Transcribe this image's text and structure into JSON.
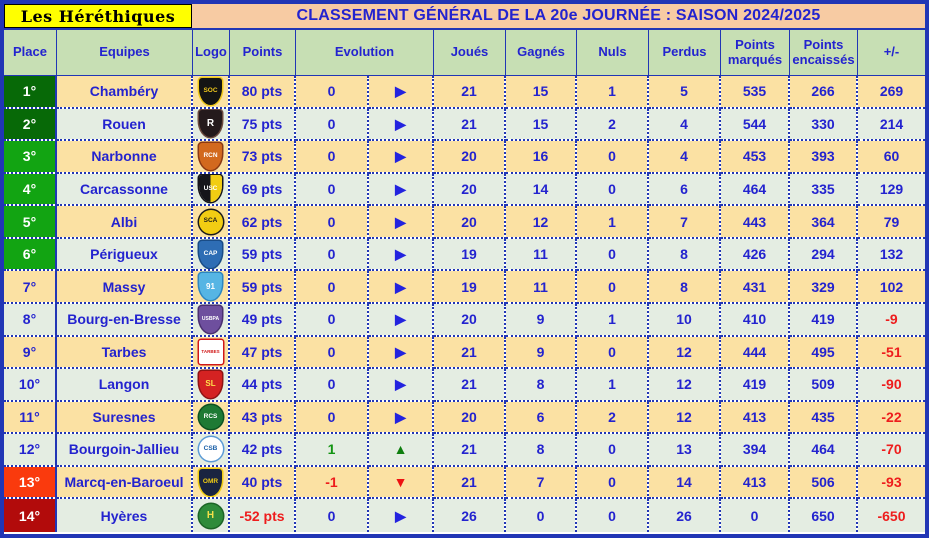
{
  "club_title": "Les Héréthiques",
  "page_title": "CLASSEMENT GÉNÉRAL DE LA 20e JOURNÉE : SAISON 2024/2025",
  "columns": [
    "Place",
    "Equipes",
    "Logo",
    "Points",
    "Evolution",
    "Joués",
    "Gagnés",
    "Nuls",
    "Perdus",
    "Points marqués",
    "Points encaissés",
    "+/-"
  ],
  "colors": {
    "frame_border": "#2136B5",
    "title_bg": "#F7CBA3",
    "title_text": "#2323CF",
    "club_bg": "#FFFF00",
    "club_text": "#000000",
    "header_bg": "#C7DFB4",
    "header_text": "#2323CF",
    "row_odd_bg": "#FBE1A3",
    "row_even_bg": "#E4EDE2",
    "cell_text": "#2323CF",
    "negative_text": "#EE1C1C",
    "positive_evo_text": "#129412",
    "place_dark_green": "#076907",
    "place_green": "#12A412",
    "place_orange": "#FA3A0D",
    "place_dark_red": "#B20B0B",
    "arrow_right": "#2323DF",
    "arrow_up": "#0E7E0E",
    "arrow_down": "#EE1111",
    "dotted_border": "#2136B5"
  },
  "rows": [
    {
      "place": "1°",
      "zone": "dark-green",
      "team": "Chambéry",
      "logo": {
        "icon": "chambery-logo",
        "shape": "shield",
        "bg": "#141414",
        "fg": "#F0C81C",
        "ring": "#F0C81C",
        "text": "SOC"
      },
      "points": "80 pts",
      "evolution": "0",
      "trend": "right",
      "joues": "21",
      "gagnes": "15",
      "nuls": "1",
      "perdus": "5",
      "marques": "535",
      "encaisses": "266",
      "diff": "269"
    },
    {
      "place": "2°",
      "zone": "dark-green",
      "team": "Rouen",
      "logo": {
        "icon": "rouen-logo",
        "shape": "shield",
        "bg": "#241A1C",
        "fg": "#FFFFFF",
        "ring": "#6B4A3F",
        "text": "R"
      },
      "points": "75 pts",
      "evolution": "0",
      "trend": "right",
      "joues": "21",
      "gagnes": "15",
      "nuls": "2",
      "perdus": "4",
      "marques": "544",
      "encaisses": "330",
      "diff": "214"
    },
    {
      "place": "3°",
      "zone": "green",
      "team": "Narbonne",
      "logo": {
        "icon": "narbonne-logo",
        "shape": "shield",
        "bg": "#D2691E",
        "fg": "#FFFFFF",
        "ring": "#8B3A14",
        "text": "RCN"
      },
      "points": "73 pts",
      "evolution": "0",
      "trend": "right",
      "joues": "20",
      "gagnes": "16",
      "nuls": "0",
      "perdus": "4",
      "marques": "453",
      "encaisses": "393",
      "diff": "60"
    },
    {
      "place": "4°",
      "zone": "green",
      "team": "Carcassonne",
      "logo": {
        "icon": "carcassonne-logo",
        "shape": "shield",
        "bg": "#15151A",
        "bg2": "#F2CD13",
        "fg": "#FFFFFF",
        "ring": "#15151A",
        "text": "USC"
      },
      "points": "69 pts",
      "evolution": "0",
      "trend": "right",
      "joues": "20",
      "gagnes": "14",
      "nuls": "0",
      "perdus": "6",
      "marques": "464",
      "encaisses": "335",
      "diff": "129"
    },
    {
      "place": "5°",
      "zone": "green",
      "team": "Albi",
      "logo": {
        "icon": "albi-logo",
        "shape": "circle",
        "bg": "#F2CD13",
        "fg": "#1A1A1A",
        "ring": "#1A1A1A",
        "text": "SCA"
      },
      "points": "62 pts",
      "evolution": "0",
      "trend": "right",
      "joues": "20",
      "gagnes": "12",
      "nuls": "1",
      "perdus": "7",
      "marques": "443",
      "encaisses": "364",
      "diff": "79"
    },
    {
      "place": "6°",
      "zone": "green",
      "team": "Périgueux",
      "logo": {
        "icon": "perigueux-logo",
        "shape": "shield",
        "bg": "#2E6DB4",
        "fg": "#FFFFFF",
        "ring": "#1A4C86",
        "text": "CAP"
      },
      "points": "59 pts",
      "evolution": "0",
      "trend": "right",
      "joues": "19",
      "gagnes": "11",
      "nuls": "0",
      "perdus": "8",
      "marques": "426",
      "encaisses": "294",
      "diff": "132"
    },
    {
      "place": "7°",
      "zone": "none",
      "team": "Massy",
      "logo": {
        "icon": "massy-logo",
        "shape": "shield",
        "bg": "#56B5E4",
        "fg": "#FFFFFF",
        "ring": "#2E86C1",
        "text": "91"
      },
      "points": "59 pts",
      "evolution": "0",
      "trend": "right",
      "joues": "19",
      "gagnes": "11",
      "nuls": "0",
      "perdus": "8",
      "marques": "431",
      "encaisses": "329",
      "diff": "102"
    },
    {
      "place": "8°",
      "zone": "none",
      "team": "Bourg-en-Bresse",
      "logo": {
        "icon": "bourg-en-bresse-logo",
        "shape": "shield",
        "bg": "#6E4F9E",
        "fg": "#FFFFFF",
        "ring": "#4A3070",
        "text": "USBPA"
      },
      "points": "49 pts",
      "evolution": "0",
      "trend": "right",
      "joues": "20",
      "gagnes": "9",
      "nuls": "1",
      "perdus": "10",
      "marques": "410",
      "encaisses": "419",
      "diff": "-9"
    },
    {
      "place": "9°",
      "zone": "none",
      "team": "Tarbes",
      "logo": {
        "icon": "tarbes-logo",
        "shape": "square",
        "bg": "#FFFFFF",
        "fg": "#D01818",
        "ring": "#D01818",
        "text": "TARBES"
      },
      "points": "47 pts",
      "evolution": "0",
      "trend": "right",
      "joues": "21",
      "gagnes": "9",
      "nuls": "0",
      "perdus": "12",
      "marques": "444",
      "encaisses": "495",
      "diff": "-51"
    },
    {
      "place": "10°",
      "zone": "none",
      "team": "Langon",
      "logo": {
        "icon": "langon-logo",
        "shape": "shield",
        "bg": "#D42222",
        "fg": "#FFE04A",
        "ring": "#8E1414",
        "text": "SL"
      },
      "points": "44 pts",
      "evolution": "0",
      "trend": "right",
      "joues": "21",
      "gagnes": "8",
      "nuls": "1",
      "perdus": "12",
      "marques": "419",
      "encaisses": "509",
      "diff": "-90"
    },
    {
      "place": "11°",
      "zone": "none",
      "team": "Suresnes",
      "logo": {
        "icon": "suresnes-logo",
        "shape": "circle",
        "bg": "#1E7A34",
        "fg": "#FFFFFF",
        "ring": "#0E5220",
        "text": "RCS"
      },
      "points": "43 pts",
      "evolution": "0",
      "trend": "right",
      "joues": "20",
      "gagnes": "6",
      "nuls": "2",
      "perdus": "12",
      "marques": "413",
      "encaisses": "435",
      "diff": "-22"
    },
    {
      "place": "12°",
      "zone": "none",
      "team": "Bourgoin-Jallieu",
      "logo": {
        "icon": "bourgoin-jallieu-logo",
        "shape": "circle",
        "bg": "#FFFFFF",
        "fg": "#1A5FA8",
        "ring": "#5B9BD5",
        "text": "CSB"
      },
      "points": "42 pts",
      "evolution": "1",
      "trend": "up",
      "joues": "21",
      "gagnes": "8",
      "nuls": "0",
      "perdus": "13",
      "marques": "394",
      "encaisses": "464",
      "diff": "-70"
    },
    {
      "place": "13°",
      "zone": "orange",
      "team": "Marcq-en-Baroeul",
      "logo": {
        "icon": "marcq-en-baroeul-logo",
        "shape": "shield",
        "bg": "#1A2440",
        "fg": "#F2CD13",
        "ring": "#F2CD13",
        "text": "OMR"
      },
      "points": "40 pts",
      "evolution": "-1",
      "trend": "down",
      "joues": "21",
      "gagnes": "7",
      "nuls": "0",
      "perdus": "14",
      "marques": "413",
      "encaisses": "506",
      "diff": "-93"
    },
    {
      "place": "14°",
      "zone": "dark-red",
      "team": "Hyères",
      "logo": {
        "icon": "hyeres-logo",
        "shape": "circle",
        "bg": "#2E8B3A",
        "fg": "#F2E04A",
        "ring": "#1C6426",
        "text": "H"
      },
      "points": "-52 pts",
      "evolution": "0",
      "trend": "right",
      "joues": "26",
      "gagnes": "0",
      "nuls": "0",
      "perdus": "26",
      "marques": "0",
      "encaisses": "650",
      "diff": "-650"
    }
  ]
}
